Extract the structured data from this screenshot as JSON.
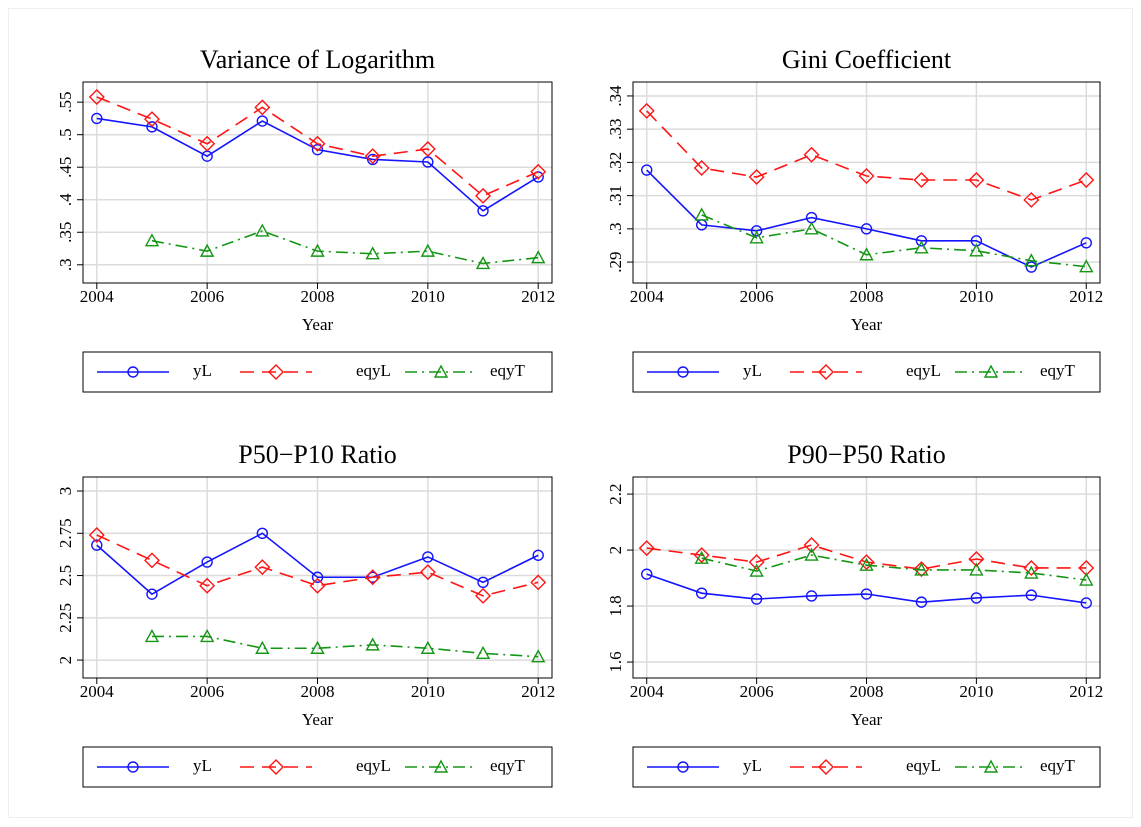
{
  "chart_data": [
    {
      "type": "line",
      "title": "Variance of Logarithm",
      "x_label": "Year",
      "x": [
        2004,
        2005,
        2006,
        2007,
        2008,
        2009,
        2010,
        2011,
        2012
      ],
      "xlim": [
        2003.75,
        2012.25
      ],
      "xticks": [
        2004,
        2006,
        2008,
        2010,
        2012
      ],
      "ylim": [
        0.272,
        0.581
      ],
      "yticks": [
        {
          "value": 0.3,
          "label": ".3"
        },
        {
          "value": 0.35,
          "label": ".35"
        },
        {
          "value": 0.4,
          "label": ".4"
        },
        {
          "value": 0.45,
          "label": ".45"
        },
        {
          "value": 0.5,
          "label": ".5"
        },
        {
          "value": 0.55,
          "label": ".55"
        }
      ],
      "grid": true,
      "legend": "bottom",
      "series": [
        {
          "name": "yL",
          "color": "#1414ff",
          "dash": "solid",
          "marker": "circle",
          "values": [
            0.525,
            0.512,
            0.467,
            0.521,
            0.477,
            0.462,
            0.458,
            0.383,
            0.435
          ]
        },
        {
          "name": "eqyL",
          "color": "#ff1414",
          "dash": "dashed",
          "marker": "diamond",
          "values": [
            0.558,
            0.524,
            0.486,
            0.542,
            0.486,
            0.467,
            0.478,
            0.406,
            0.443
          ]
        },
        {
          "name": "eqyT",
          "color": "#149614",
          "dash": "dashdot",
          "marker": "triangle",
          "values": [
            null,
            0.337,
            0.321,
            0.352,
            0.321,
            0.317,
            0.321,
            0.302,
            0.311
          ]
        }
      ]
    },
    {
      "type": "line",
      "title": "Gini Coefficient",
      "x_label": "Year",
      "x": [
        2004,
        2005,
        2006,
        2007,
        2008,
        2009,
        2010,
        2011,
        2012
      ],
      "xlim": [
        2003.75,
        2012.25
      ],
      "xticks": [
        2004,
        2006,
        2008,
        2010,
        2012
      ],
      "ylim": [
        0.2837,
        0.3442
      ],
      "yticks": [
        {
          "value": 0.29,
          "label": ".29"
        },
        {
          "value": 0.3,
          "label": ".3"
        },
        {
          "value": 0.31,
          "label": ".31"
        },
        {
          "value": 0.32,
          "label": ".32"
        },
        {
          "value": 0.33,
          "label": ".33"
        },
        {
          "value": 0.34,
          "label": ".34"
        }
      ],
      "grid": true,
      "legend": "bottom",
      "series": [
        {
          "name": "yL",
          "color": "#1414ff",
          "dash": "solid",
          "marker": "circle",
          "values": [
            0.3177,
            0.3012,
            0.2994,
            0.3034,
            0.3,
            0.2964,
            0.2964,
            0.2885,
            0.2958
          ]
        },
        {
          "name": "eqyL",
          "color": "#ff1414",
          "dash": "dashed",
          "marker": "diamond",
          "values": [
            0.3355,
            0.3183,
            0.3156,
            0.3223,
            0.3159,
            0.3147,
            0.3147,
            0.3087,
            0.3147
          ]
        },
        {
          "name": "eqyT",
          "color": "#149614",
          "dash": "dashdot",
          "marker": "triangle",
          "values": [
            null,
            0.3042,
            0.2973,
            0.3,
            0.2922,
            0.2943,
            0.2934,
            0.2904,
            0.2886
          ]
        }
      ]
    },
    {
      "type": "line",
      "title": "P50−P10 Ratio",
      "x_label": "Year",
      "x": [
        2004,
        2005,
        2006,
        2007,
        2008,
        2009,
        2010,
        2011,
        2012
      ],
      "xlim": [
        2003.75,
        2012.25
      ],
      "xticks": [
        2004,
        2006,
        2008,
        2010,
        2012
      ],
      "ylim": [
        1.894,
        3.083
      ],
      "yticks": [
        2,
        2.25,
        2.5,
        2.75,
        3
      ],
      "grid": true,
      "legend": "bottom",
      "series": [
        {
          "name": "yL",
          "color": "#1414ff",
          "dash": "solid",
          "marker": "circle",
          "values": [
            2.68,
            2.39,
            2.58,
            2.75,
            2.49,
            2.49,
            2.61,
            2.46,
            2.62
          ]
        },
        {
          "name": "eqyL",
          "color": "#ff1414",
          "dash": "dashed",
          "marker": "diamond",
          "values": [
            2.74,
            2.59,
            2.44,
            2.55,
            2.44,
            2.49,
            2.52,
            2.38,
            2.46
          ]
        },
        {
          "name": "eqyT",
          "color": "#149614",
          "dash": "dashdot",
          "marker": "triangle",
          "values": [
            null,
            2.14,
            2.14,
            2.07,
            2.07,
            2.09,
            2.07,
            2.04,
            2.02
          ]
        }
      ]
    },
    {
      "type": "line",
      "title": "P90−P50 Ratio",
      "x_label": "Year",
      "x": [
        2004,
        2005,
        2006,
        2007,
        2008,
        2009,
        2010,
        2011,
        2012
      ],
      "xlim": [
        2003.75,
        2012.25
      ],
      "xticks": [
        2004,
        2006,
        2008,
        2010,
        2012
      ],
      "ylim": [
        1.543,
        2.261
      ],
      "yticks": [
        1.6,
        1.8,
        2,
        2.2
      ],
      "grid": true,
      "legend": "bottom",
      "series": [
        {
          "name": "yL",
          "color": "#1414ff",
          "dash": "solid",
          "marker": "circle",
          "values": [
            1.914,
            1.846,
            1.825,
            1.836,
            1.843,
            1.814,
            1.829,
            1.839,
            1.811
          ]
        },
        {
          "name": "eqyL",
          "color": "#ff1414",
          "dash": "dashed",
          "marker": "diamond",
          "values": [
            2.007,
            1.982,
            1.957,
            2.018,
            1.957,
            1.932,
            1.968,
            1.936,
            1.936
          ]
        },
        {
          "name": "eqyT",
          "color": "#149614",
          "dash": "dashdot",
          "marker": "triangle",
          "values": [
            null,
            1.971,
            1.925,
            1.982,
            1.946,
            1.929,
            1.929,
            1.918,
            1.893
          ]
        }
      ]
    }
  ]
}
